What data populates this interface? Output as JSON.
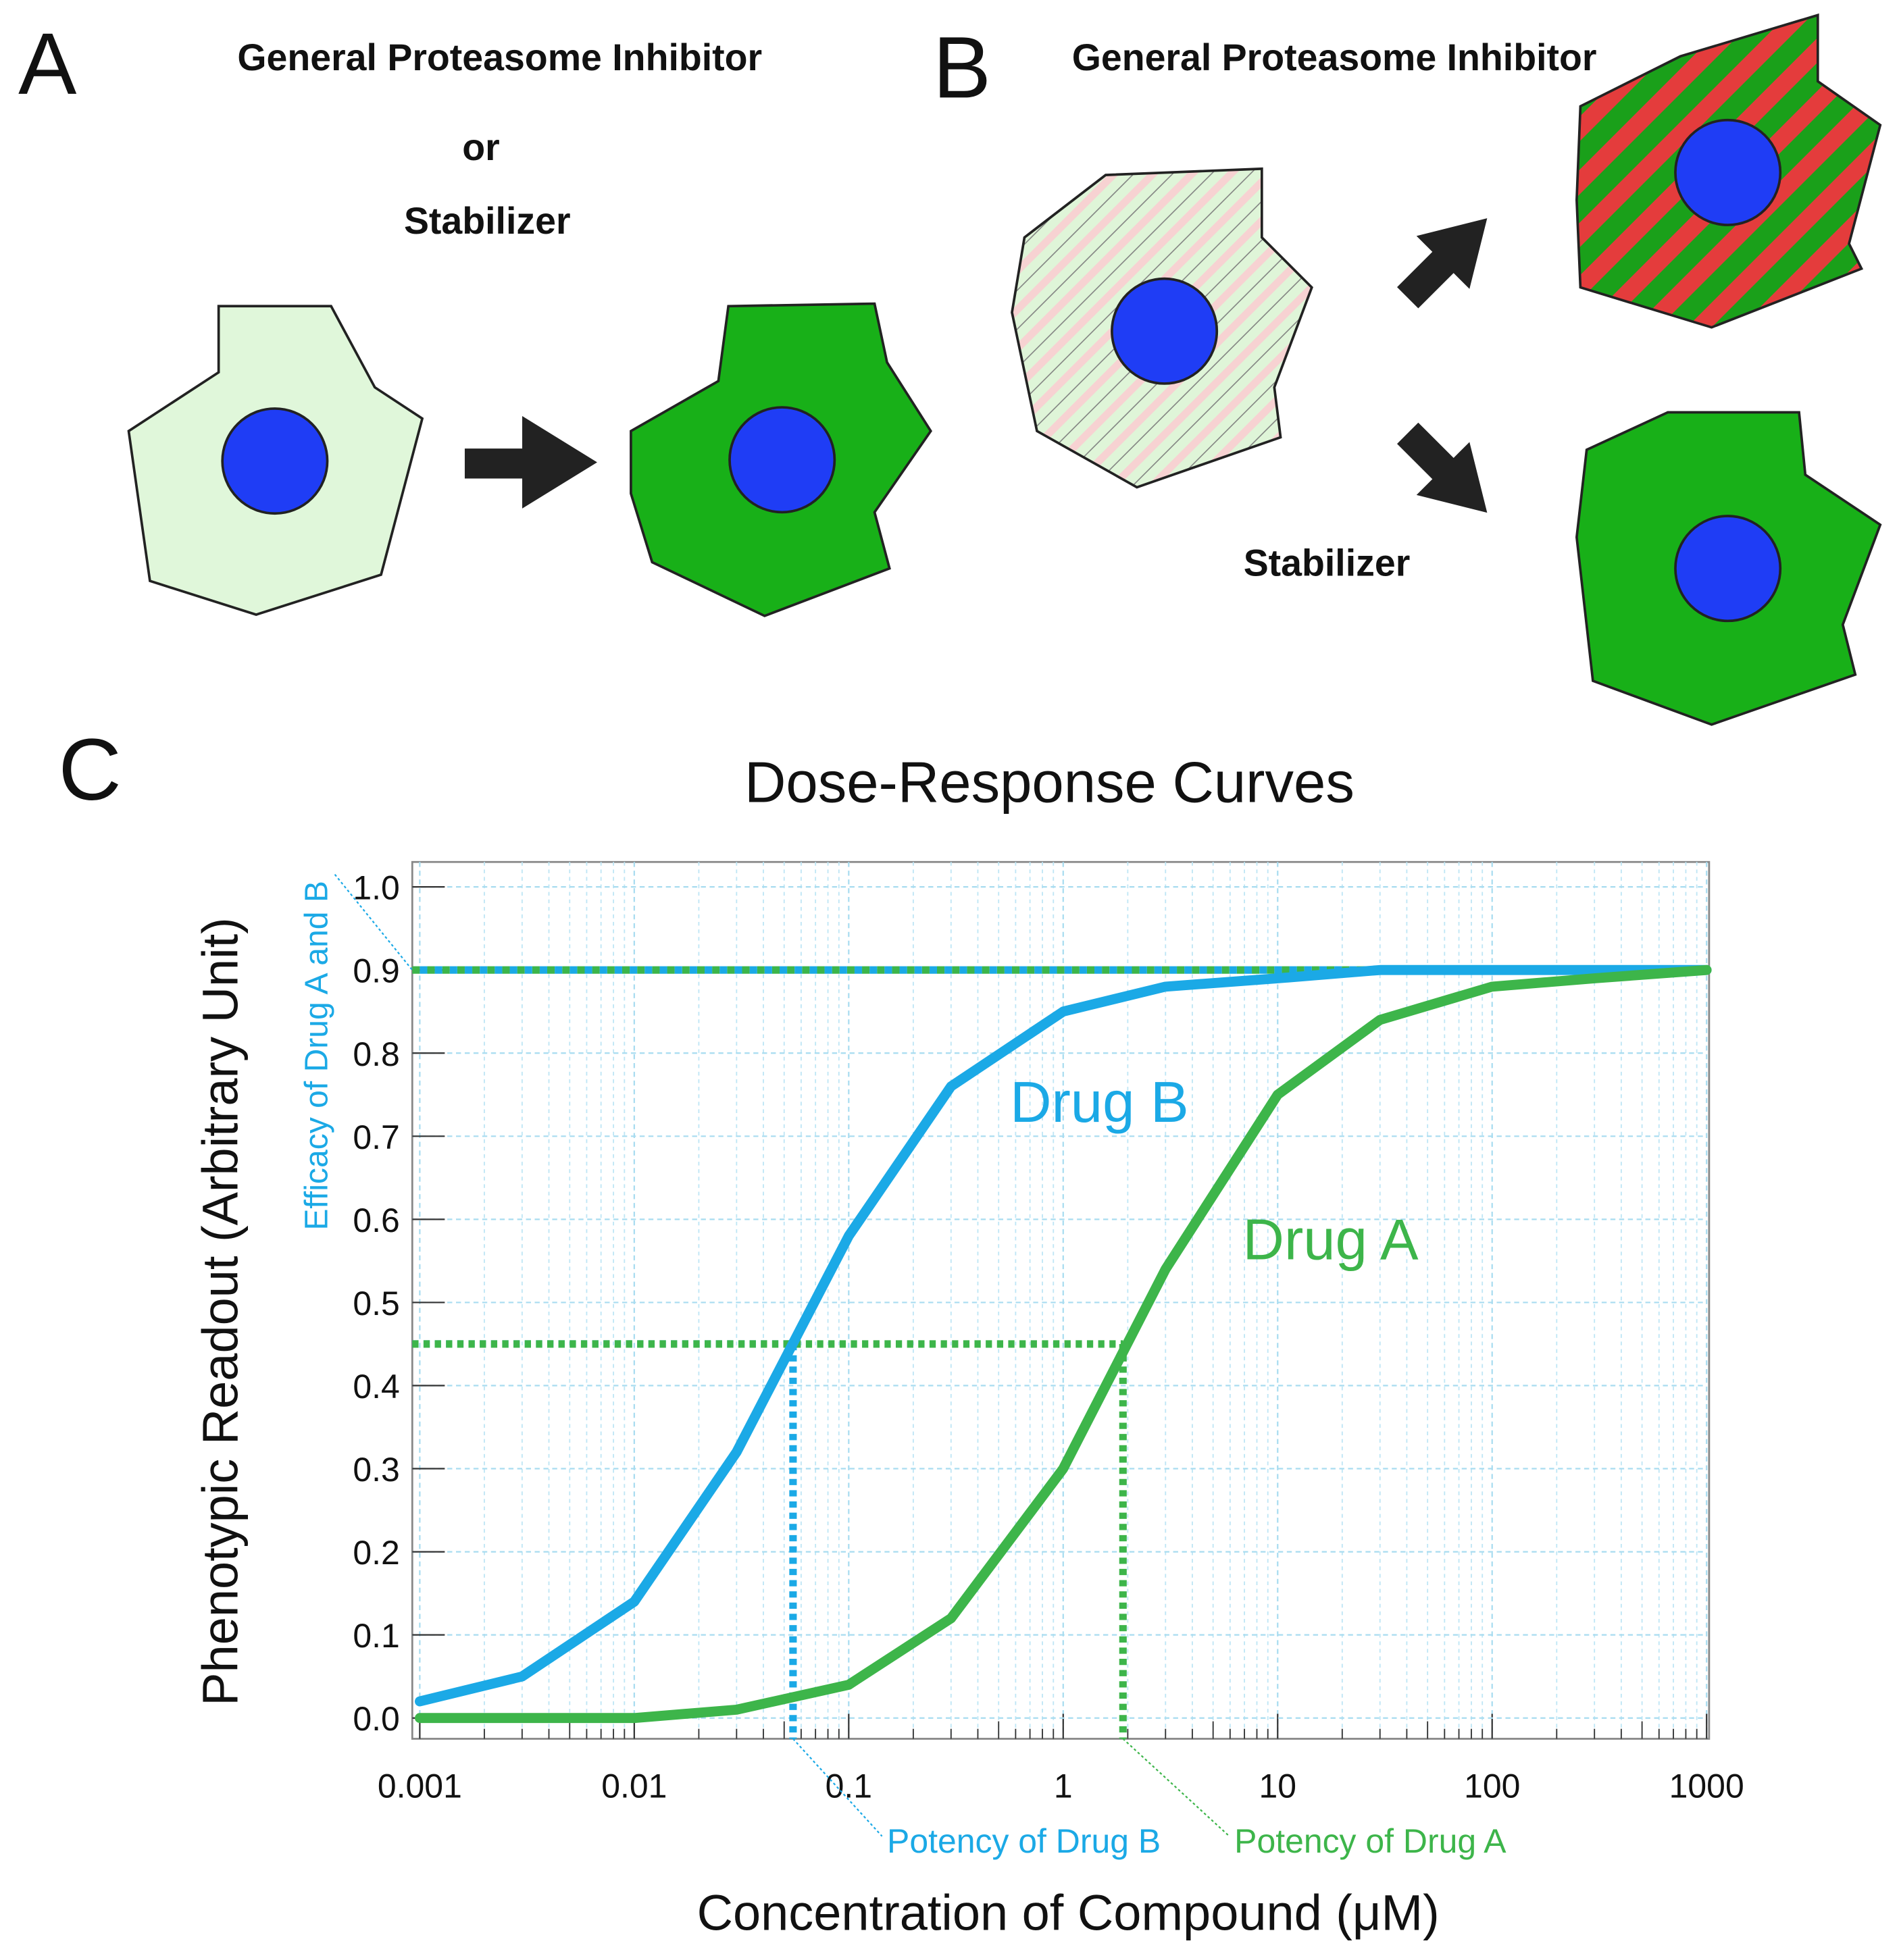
{
  "panels": {
    "a": {
      "label": "A",
      "line1": "General Proteasome Inhibitor",
      "line2": "or",
      "line3": "Stabilizer"
    },
    "b": {
      "label": "B",
      "top": "General Proteasome Inhibitor",
      "bottom": "Stabilizer"
    },
    "c": {
      "label": "C"
    }
  },
  "chart_data": {
    "type": "line",
    "title": "Dose-Response Curves",
    "xlabel": "Concentration of Compound (μM)",
    "ylabel": "Phenotypic Readout (Arbitrary Unit)",
    "log_x": true,
    "grid": true,
    "x": [
      0.001,
      0.003,
      0.01,
      0.03,
      0.1,
      0.3,
      1,
      3,
      10,
      30,
      100,
      300,
      1000
    ],
    "series": [
      {
        "name": "Drug B",
        "color": "#1ba9e6",
        "values": [
          0.02,
          0.05,
          0.14,
          0.32,
          0.58,
          0.76,
          0.85,
          0.88,
          0.89,
          0.9,
          0.9,
          0.9,
          0.9
        ]
      },
      {
        "name": "Drug A",
        "color": "#3db54a",
        "values": [
          0.0,
          0.0,
          0.0,
          0.01,
          0.04,
          0.12,
          0.3,
          0.54,
          0.75,
          0.84,
          0.88,
          0.89,
          0.9
        ]
      }
    ],
    "xlim": [
      0.001,
      1000
    ],
    "ylim": [
      -0.025,
      1.03
    ],
    "xticks": [
      0.001,
      0.01,
      0.1,
      1,
      10,
      100,
      1000
    ],
    "yticks": [
      {
        "value": 0,
        "label": "0.0"
      },
      0.1,
      0.2,
      0.3,
      0.4,
      0.5,
      0.6,
      0.7,
      0.8,
      0.9,
      {
        "value": 1,
        "label": "1.0"
      }
    ],
    "annotations": [
      {
        "text": "Efficacy of Drug A and B",
        "y": 0.9,
        "color": "#1ba9e6"
      },
      {
        "text": "Potency of Drug B",
        "x": 0.055,
        "y": 0.45,
        "color": "#1ba9e6"
      },
      {
        "text": "Potency of Drug A",
        "x": 1.9,
        "y": 0.45,
        "color": "#3db54a"
      }
    ]
  }
}
